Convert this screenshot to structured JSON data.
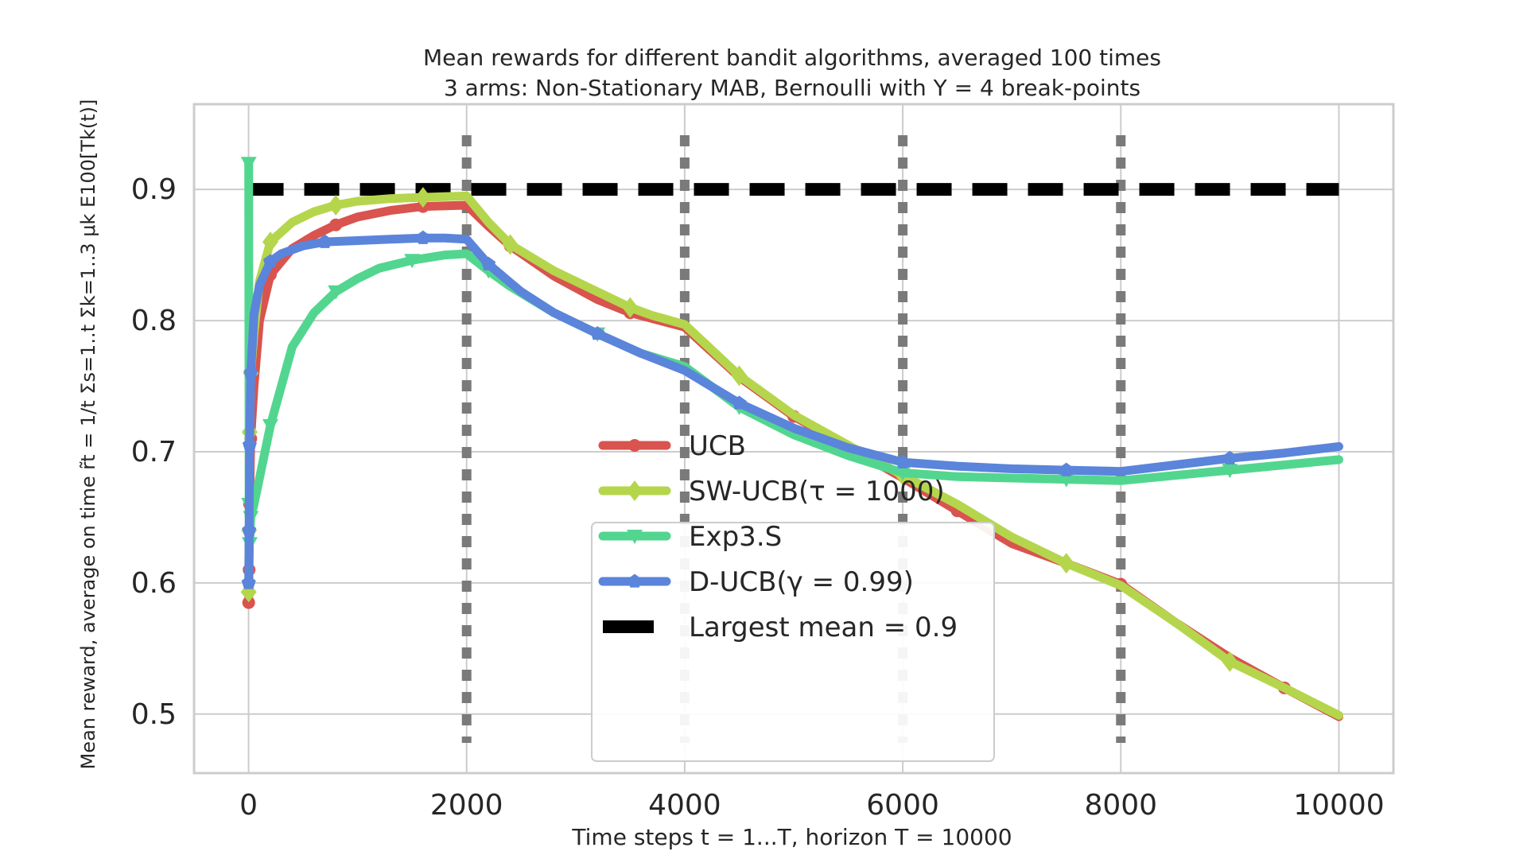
{
  "chart_data": {
    "type": "line",
    "title": "Mean rewards for different bandit algorithms, averaged 100 times",
    "subtitle": "3 arms: Non-Stationary MAB, Bernoulli with Υ = 4 break-points",
    "xlabel": "Time steps t = 1...T, horizon T = 10000",
    "ylabel": "Mean reward, average on time r̃t = 1/t Σs=1..t Σk=1..3 μk E100[Tk(t)]",
    "xlim": [
      -500,
      10500
    ],
    "ylim": [
      0.455,
      0.965
    ],
    "xticks": [
      0,
      2000,
      4000,
      6000,
      8000,
      10000
    ],
    "xtick_labels": [
      "0",
      "2000",
      "4000",
      "6000",
      "8000",
      "10000"
    ],
    "yticks": [
      0.5,
      0.6,
      0.7,
      0.8,
      0.9
    ],
    "ytick_labels": [
      "0.5",
      "0.6",
      "0.7",
      "0.8",
      "0.9"
    ],
    "grid": true,
    "break_points": [
      2000,
      4000,
      6000,
      8000
    ],
    "largest_mean": {
      "name": "Largest mean = 0.9",
      "value": 0.9,
      "color": "#000000"
    },
    "legend_position": "lower-center",
    "series": [
      {
        "name": "UCB",
        "color": "#d9534f",
        "marker": "circle",
        "x": [
          1,
          5,
          10,
          20,
          50,
          100,
          200,
          400,
          600,
          800,
          1000,
          1300,
          1600,
          2000,
          2200,
          2400,
          2800,
          3200,
          3500,
          4000,
          4500,
          5000,
          5500,
          6000,
          6500,
          7000,
          7500,
          8000,
          8500,
          9000,
          9500,
          10000
        ],
        "y": [
          0.585,
          0.61,
          0.66,
          0.71,
          0.75,
          0.8,
          0.835,
          0.855,
          0.865,
          0.873,
          0.879,
          0.884,
          0.887,
          0.888,
          0.872,
          0.857,
          0.834,
          0.816,
          0.806,
          0.795,
          0.757,
          0.727,
          0.704,
          0.68,
          0.655,
          0.63,
          0.615,
          0.599,
          0.57,
          0.543,
          0.52,
          0.498
        ]
      },
      {
        "name": "SW-UCB(τ = 1000)",
        "color": "#b5d64c",
        "marker": "diamond",
        "x": [
          1,
          5,
          10,
          20,
          50,
          100,
          200,
          400,
          600,
          800,
          1000,
          1300,
          1600,
          2000,
          2200,
          2400,
          2800,
          3200,
          3500,
          3700,
          4000,
          4500,
          5000,
          5500,
          6000,
          6500,
          7000,
          7500,
          8000,
          8500,
          9000,
          9500,
          10000
        ],
        "y": [
          0.593,
          0.64,
          0.715,
          0.76,
          0.79,
          0.83,
          0.86,
          0.875,
          0.883,
          0.888,
          0.891,
          0.893,
          0.894,
          0.895,
          0.875,
          0.858,
          0.838,
          0.822,
          0.81,
          0.804,
          0.797,
          0.758,
          0.728,
          0.705,
          0.682,
          0.66,
          0.635,
          0.615,
          0.598,
          0.57,
          0.54,
          0.52,
          0.499
        ]
      },
      {
        "name": "Exp3.S",
        "color": "#52d68f",
        "marker": "triangle-down",
        "x": [
          1,
          5,
          10,
          20,
          50,
          100,
          200,
          400,
          600,
          800,
          1000,
          1200,
          1500,
          1800,
          2000,
          2200,
          2400,
          2800,
          3200,
          3600,
          4000,
          4500,
          5000,
          5500,
          6000,
          6500,
          7000,
          7500,
          8000,
          8500,
          9000,
          9500,
          10000
        ],
        "y": [
          0.92,
          0.66,
          0.63,
          0.65,
          0.66,
          0.68,
          0.72,
          0.78,
          0.806,
          0.822,
          0.832,
          0.84,
          0.846,
          0.85,
          0.851,
          0.838,
          0.826,
          0.806,
          0.79,
          0.775,
          0.765,
          0.734,
          0.713,
          0.697,
          0.684,
          0.681,
          0.68,
          0.679,
          0.678,
          0.682,
          0.686,
          0.69,
          0.694
        ]
      },
      {
        "name": "D-UCB(γ = 0.99)",
        "color": "#5b84db",
        "marker": "pentagon",
        "x": [
          1,
          5,
          10,
          20,
          50,
          100,
          200,
          300,
          500,
          700,
          1000,
          1300,
          1600,
          1800,
          2000,
          2200,
          2500,
          2800,
          3200,
          3600,
          4000,
          4500,
          5000,
          5500,
          6000,
          6500,
          7000,
          7500,
          8000,
          8500,
          9000,
          9500,
          10000
        ],
        "y": [
          0.6,
          0.64,
          0.705,
          0.76,
          0.805,
          0.827,
          0.845,
          0.851,
          0.857,
          0.86,
          0.861,
          0.862,
          0.863,
          0.863,
          0.862,
          0.843,
          0.822,
          0.806,
          0.79,
          0.775,
          0.762,
          0.737,
          0.718,
          0.703,
          0.692,
          0.689,
          0.687,
          0.686,
          0.685,
          0.69,
          0.695,
          0.699,
          0.704
        ]
      }
    ]
  }
}
